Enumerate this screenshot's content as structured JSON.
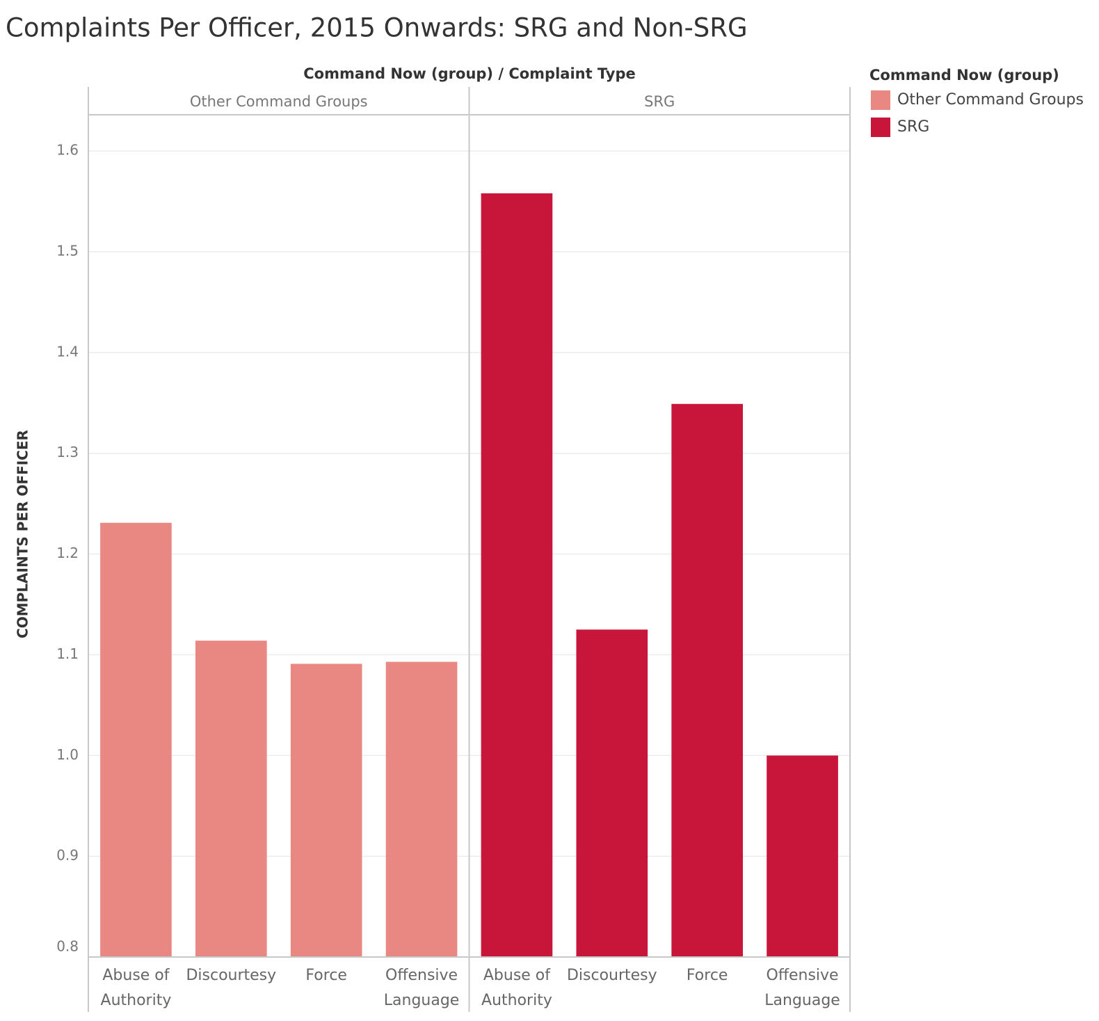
{
  "chart_data": {
    "type": "bar",
    "title": "Complaints Per Officer, 2015 Onwards: SRG and Non-SRG",
    "facet_header": "Command Now (group)  /  Complaint Type",
    "y_label": "COMPLAINTS PER OFFICER",
    "legend_title": "Command Now (group)",
    "categories": [
      "Abuse of Authority",
      "Discourtesy",
      "Force",
      "Offensive Language"
    ],
    "series": [
      {
        "name": "Other Command Groups",
        "color": "#e98882",
        "values": [
          1.231,
          1.114,
          1.091,
          1.093
        ]
      },
      {
        "name": "SRG",
        "color": "#c8163a",
        "values": [
          1.558,
          1.125,
          1.349,
          1.0
        ]
      }
    ],
    "ylim": [
      0.8,
      1.636
    ],
    "yticks": [
      0.8,
      0.9,
      {
        "value": 1,
        "label": "1.0"
      },
      1.1,
      1.2,
      1.3,
      1.4,
      1.5,
      1.6
    ],
    "grid": true,
    "legend_position": "right"
  }
}
